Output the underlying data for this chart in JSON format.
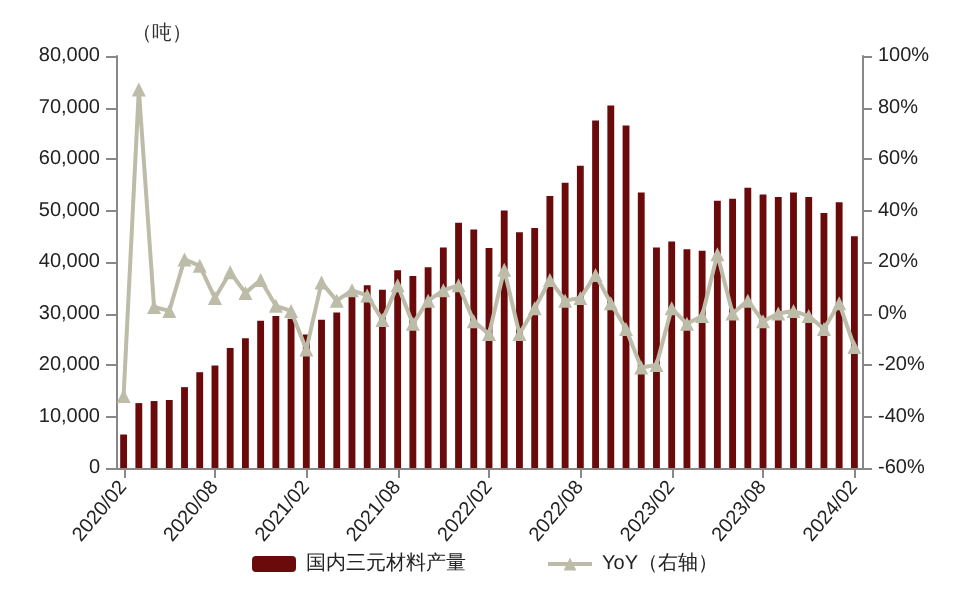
{
  "chart_data": {
    "type": "bar",
    "ylabel": "（吨）",
    "categories": [
      "2020/02",
      null,
      null,
      null,
      null,
      null,
      "2020/08",
      null,
      null,
      null,
      null,
      null,
      "2021/02",
      null,
      null,
      null,
      null,
      null,
      "2021/08",
      null,
      null,
      null,
      null,
      null,
      "2022/02",
      null,
      null,
      null,
      null,
      null,
      "2022/08",
      null,
      null,
      null,
      null,
      null,
      "2023/02",
      null,
      null,
      null,
      null,
      null,
      "2023/08",
      null,
      null,
      null,
      null,
      null,
      "2024/02"
    ],
    "series": [
      {
        "name": "国内三元材料产量",
        "color": "#6b0a0a",
        "values": [
          6500,
          12600,
          13000,
          13200,
          15700,
          18600,
          19900,
          23300,
          25200,
          28600,
          29500,
          29000,
          25900,
          28800,
          30200,
          33400,
          35500,
          34600,
          38400,
          37300,
          39000,
          42800,
          47600,
          46300,
          42700,
          50000,
          45800,
          46600,
          52800,
          55400,
          58700,
          67500,
          70400,
          66500,
          53500,
          42800,
          44000,
          42500,
          42200,
          51900,
          52300,
          54400,
          53100,
          52600,
          53500,
          52600,
          49500,
          51600,
          45000
        ]
      },
      {
        "name": "YoY（右轴）",
        "type": "line",
        "axis": "y2",
        "color": "#bdbca8",
        "marker": "triangle",
        "values": [
          -32,
          87,
          2.5,
          1,
          21,
          18.5,
          6,
          16,
          8,
          13,
          3,
          1,
          -14,
          12,
          5,
          9,
          7,
          -2.5,
          11,
          -4,
          5,
          9,
          11,
          -3,
          -8,
          17,
          -8,
          2,
          13,
          5,
          6,
          15,
          4,
          -6,
          -21,
          -20,
          2,
          -4,
          -1,
          23,
          0,
          5,
          -3,
          0,
          1,
          -1,
          -6,
          4,
          -13
        ]
      }
    ],
    "ylim": [
      0,
      80000
    ],
    "yticks": [
      {
        "value": 0,
        "label": "0"
      },
      {
        "value": 10000,
        "label": "10,000"
      },
      {
        "value": 20000,
        "label": "20,000"
      },
      {
        "value": 30000,
        "label": "30,000"
      },
      {
        "value": 40000,
        "label": "40,000"
      },
      {
        "value": 50000,
        "label": "50,000"
      },
      {
        "value": 60000,
        "label": "60,000"
      },
      {
        "value": 70000,
        "label": "70,000"
      },
      {
        "value": 80000,
        "label": "80,000"
      }
    ],
    "y2lim": [
      -60,
      100
    ],
    "y2ticks": [
      {
        "value": -60,
        "label": "-60%"
      },
      {
        "value": -40,
        "label": "-40%"
      },
      {
        "value": -20,
        "label": "-20%"
      },
      {
        "value": 0,
        "label": "0%"
      },
      {
        "value": 20,
        "label": "20%"
      },
      {
        "value": 40,
        "label": "40%"
      },
      {
        "value": 60,
        "label": "60%"
      },
      {
        "value": 80,
        "label": "80%"
      },
      {
        "value": 100,
        "label": "100%"
      }
    ],
    "legend": "bottom",
    "grid": false
  }
}
